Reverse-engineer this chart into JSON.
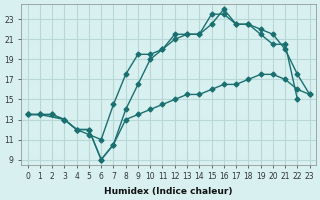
{
  "xlabel": "Humidex (Indice chaleur)",
  "bg_color": "#d8f0f0",
  "grid_color": "#b8d8d8",
  "line_color": "#1a7070",
  "xlim": [
    -0.5,
    23.5
  ],
  "ylim": [
    8.5,
    24.5
  ],
  "xticks": [
    0,
    1,
    2,
    3,
    4,
    5,
    6,
    7,
    8,
    9,
    10,
    11,
    12,
    13,
    14,
    15,
    16,
    17,
    18,
    19,
    20,
    21,
    22,
    23
  ],
  "yticks": [
    9,
    11,
    13,
    15,
    17,
    19,
    21,
    23
  ],
  "line1_x": [
    0,
    1,
    2,
    3,
    4,
    5,
    6,
    7,
    8,
    9,
    10,
    11,
    12,
    13,
    14,
    15,
    16,
    17,
    18,
    19,
    20,
    21,
    22,
    23
  ],
  "line1_y": [
    13.5,
    13.5,
    13.5,
    13.0,
    12.0,
    12.0,
    9.0,
    10.5,
    13.0,
    13.5,
    14.0,
    14.5,
    15.0,
    15.5,
    15.5,
    16.0,
    16.5,
    16.5,
    17.0,
    17.5,
    17.5,
    17.0,
    16.0,
    15.5
  ],
  "line2_x": [
    0,
    1,
    2,
    3,
    4,
    5,
    6,
    7,
    8,
    9,
    10,
    11,
    12,
    13,
    14,
    15,
    16,
    17,
    18,
    19,
    20,
    21,
    22
  ],
  "line2_y": [
    13.5,
    13.5,
    13.5,
    13.0,
    12.0,
    11.5,
    11.0,
    14.5,
    17.5,
    19.5,
    19.5,
    20.0,
    21.5,
    21.5,
    21.5,
    23.5,
    23.5,
    22.5,
    22.5,
    21.5,
    20.5,
    20.5,
    15.0
  ],
  "line3_x": [
    0,
    1,
    3,
    4,
    5,
    6,
    7,
    8,
    9,
    10,
    11,
    12,
    13,
    14,
    15,
    16,
    17,
    18,
    19,
    20,
    21,
    22,
    23
  ],
  "line3_y": [
    13.5,
    13.5,
    13.0,
    12.0,
    12.0,
    9.0,
    10.5,
    14.0,
    16.5,
    19.0,
    20.0,
    21.0,
    21.5,
    21.5,
    22.5,
    24.0,
    22.5,
    22.5,
    22.0,
    21.5,
    20.0,
    17.5,
    15.5
  ]
}
